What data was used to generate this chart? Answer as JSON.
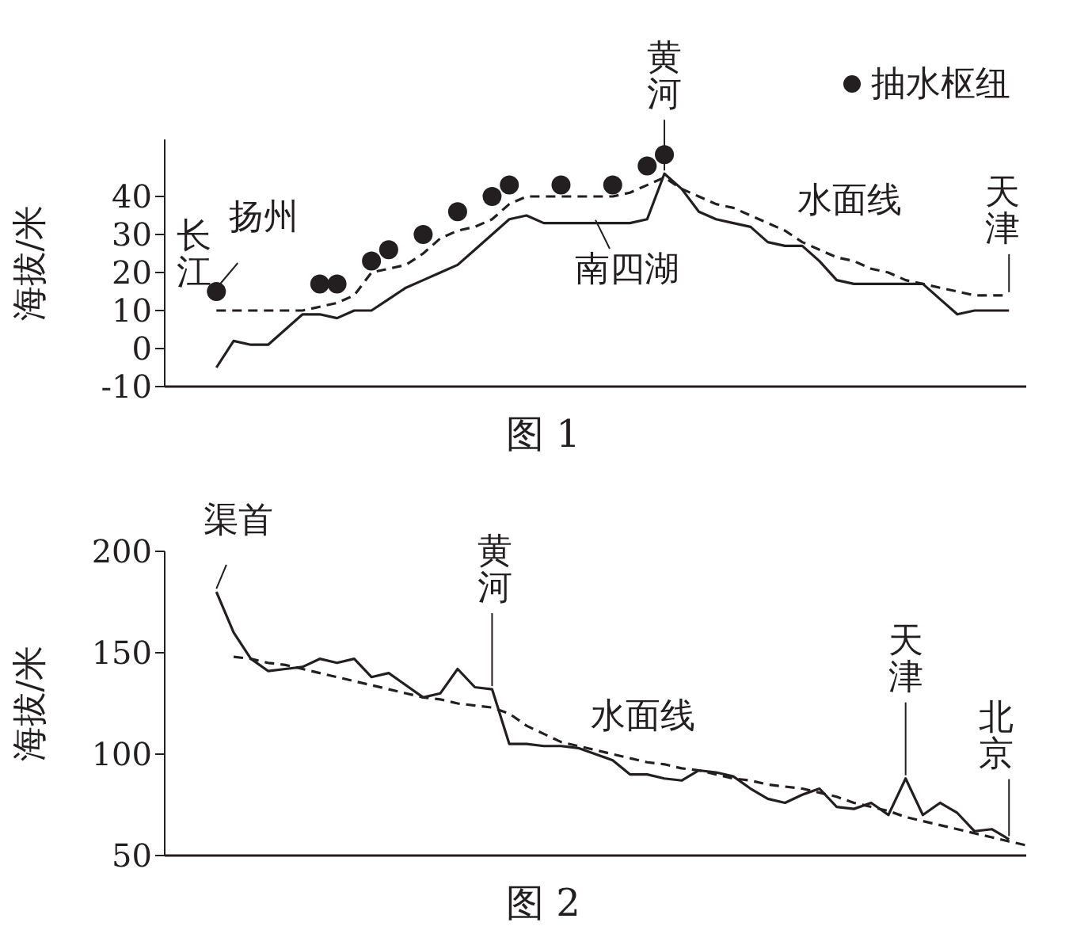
{
  "chart_data": [
    {
      "type": "line",
      "title": "图 1",
      "ylabel": "海拔/米",
      "categories": [
        null,
        null,
        null,
        null,
        null,
        null,
        null,
        null,
        null,
        null,
        null,
        null,
        null,
        null,
        null,
        null,
        null,
        null,
        null,
        null,
        null,
        null,
        null,
        null,
        null,
        null,
        null,
        null,
        null,
        null,
        null,
        null,
        null,
        null,
        null,
        null,
        null,
        null,
        null,
        null,
        null,
        null,
        null,
        null,
        null,
        null,
        null,
        null,
        null,
        null,
        null
      ],
      "ylim": [
        -10,
        55
      ],
      "yticks": [
        -10,
        0,
        10,
        20,
        30,
        40
      ],
      "tick_labels": "y",
      "legend": "top right",
      "series": [
        {
          "color": "#231f20",
          "line_style": "solid",
          "values": [
            null,
            null,
            null,
            -5,
            2,
            1,
            1,
            5,
            9,
            9,
            8,
            10,
            10,
            13,
            16,
            18,
            20,
            22,
            26,
            30,
            34,
            35,
            33,
            33,
            33,
            33,
            33,
            33,
            34,
            46,
            42,
            36,
            34,
            33,
            32,
            28,
            27,
            27,
            23,
            18,
            17,
            17,
            17,
            17,
            17,
            13,
            9,
            10,
            10,
            10,
            null
          ]
        },
        {
          "name": "水面线",
          "color": "#231f20",
          "line_style": "dashed",
          "values": [
            null,
            null,
            null,
            10,
            10,
            10,
            10,
            10,
            10,
            11,
            12,
            14,
            20,
            21,
            22,
            25,
            29,
            31,
            32,
            34,
            38,
            40,
            40,
            40,
            40,
            40,
            40,
            41,
            43,
            45,
            42,
            40,
            38,
            37,
            35,
            33,
            31,
            28,
            26,
            24,
            23,
            21,
            20,
            18,
            17,
            16,
            15,
            14,
            14,
            14,
            null
          ]
        },
        {
          "type": "scatter",
          "name": "抽水枢纽",
          "color": "#231f20",
          "marker": "circle",
          "values": [
            null,
            null,
            null,
            15,
            null,
            null,
            null,
            null,
            null,
            17,
            17,
            null,
            23,
            26,
            null,
            30,
            null,
            36,
            null,
            40,
            43,
            null,
            null,
            43,
            null,
            null,
            43,
            null,
            48,
            51,
            null,
            null,
            null,
            null,
            null,
            null,
            null,
            null,
            null,
            null,
            null,
            null,
            null,
            null,
            null,
            null,
            null,
            null,
            null,
            null,
            null
          ]
        }
      ],
      "annotations": [
        "长江",
        "扬州",
        "南四湖",
        "黄河",
        "天津"
      ]
    },
    {
      "type": "line",
      "title": "图 2",
      "ylabel": "海拔/米",
      "categories": [
        null,
        null,
        null,
        null,
        null,
        null,
        null,
        null,
        null,
        null,
        null,
        null,
        null,
        null,
        null,
        null,
        null,
        null,
        null,
        null,
        null,
        null,
        null,
        null,
        null,
        null,
        null,
        null,
        null,
        null,
        null,
        null,
        null,
        null,
        null,
        null,
        null,
        null,
        null,
        null,
        null,
        null,
        null,
        null,
        null,
        null,
        null,
        null,
        null,
        null,
        null
      ],
      "ylim": [
        50,
        200
      ],
      "yticks": [
        50,
        100,
        150,
        200
      ],
      "tick_labels": "y",
      "legend": false,
      "series": [
        {
          "color": "#231f20",
          "line_style": "solid",
          "values": [
            null,
            null,
            null,
            180,
            160,
            147,
            141,
            142,
            143,
            147,
            145,
            147,
            138,
            140,
            134,
            128,
            130,
            142,
            133,
            132,
            105,
            105,
            104,
            104,
            103,
            100,
            97,
            90,
            90,
            88,
            87,
            92,
            91,
            89,
            83,
            78,
            76,
            80,
            83,
            74,
            73,
            76,
            70,
            88,
            70,
            76,
            71,
            62,
            63,
            58,
            null
          ]
        },
        {
          "name": "水面线",
          "color": "#231f20",
          "line_style": "dashed",
          "values": [
            null,
            null,
            null,
            null,
            148,
            147,
            145,
            144,
            142,
            140,
            138,
            136,
            134,
            132,
            130,
            128,
            127,
            125,
            124,
            123,
            120,
            114,
            110,
            106,
            104,
            102,
            100,
            98,
            96,
            95,
            93,
            92,
            90,
            88,
            87,
            85,
            84,
            83,
            81,
            79,
            76,
            74,
            72,
            69,
            67,
            65,
            63,
            61,
            59,
            57,
            55
          ]
        }
      ],
      "annotations": [
        "渠首",
        "黄河",
        "天津",
        "北京"
      ]
    }
  ]
}
